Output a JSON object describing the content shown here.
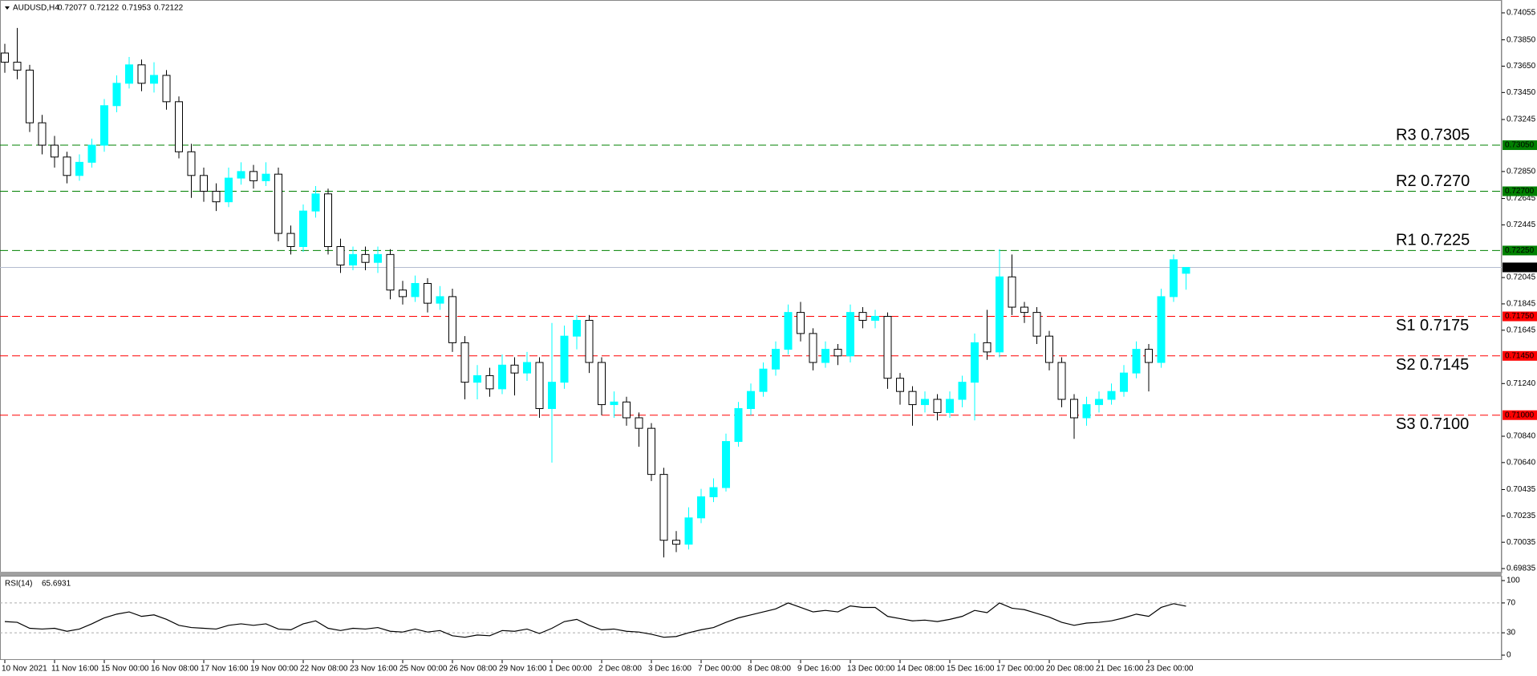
{
  "chart_data": [
    {
      "type": "candlestick",
      "symbol": "AUDUSD,H4",
      "categories": [
        "10 Nov 2021",
        null,
        null,
        null,
        "11 Nov 16:00",
        null,
        null,
        null,
        "15 Nov 00:00",
        null,
        null,
        null,
        "16 Nov 08:00",
        null,
        null,
        null,
        "17 Nov 16:00",
        null,
        null,
        null,
        "19 Nov 00:00",
        null,
        null,
        null,
        "22 Nov 08:00",
        null,
        null,
        null,
        "23 Nov 16:00",
        null,
        null,
        null,
        "25 Nov 00:00",
        null,
        null,
        null,
        "26 Nov 08:00",
        null,
        null,
        null,
        "29 Nov 16:00",
        null,
        null,
        null,
        "1 Dec 00:00",
        null,
        null,
        null,
        "2 Dec 08:00",
        null,
        null,
        null,
        "3 Dec 16:00",
        null,
        null,
        null,
        "7 Dec 00:00",
        null,
        null,
        null,
        "8 Dec 08:00",
        null,
        null,
        null,
        "9 Dec 16:00",
        null,
        null,
        null,
        "13 Dec 00:00",
        null,
        null,
        null,
        "14 Dec 08:00",
        null,
        null,
        null,
        "15 Dec 16:00",
        null,
        null,
        null,
        "17 Dec 00:00",
        null,
        null,
        null,
        "20 Dec 08:00",
        null,
        null,
        null,
        "21 Dec 16:00",
        null,
        null,
        null,
        "23 Dec 00:00",
        null,
        null,
        null
      ],
      "open": [
        0.7375,
        0.7368,
        0.7362,
        0.7322,
        0.7305,
        0.7296,
        0.7282,
        0.7292,
        0.7305,
        0.7335,
        0.7352,
        0.7366,
        0.7352,
        0.7358,
        0.7338,
        0.73,
        0.7282,
        0.727,
        0.7262,
        0.728,
        0.7285,
        0.7278,
        0.7283,
        0.7238,
        0.7228,
        0.7255,
        0.7268,
        0.7228,
        0.7214,
        0.7222,
        0.7216,
        0.7222,
        0.7195,
        0.719,
        0.72,
        0.7185,
        0.719,
        0.7155,
        0.7125,
        0.713,
        0.712,
        0.7138,
        0.7132,
        0.714,
        0.7105,
        0.7125,
        0.716,
        0.7172,
        0.714,
        0.7108,
        0.711,
        0.7098,
        0.709,
        0.7055,
        0.7005,
        0.7002,
        0.7022,
        0.7038,
        0.7045,
        0.708,
        0.7105,
        0.7118,
        0.7135,
        0.715,
        0.7178,
        0.7162,
        0.714,
        0.715,
        0.7145,
        0.7178,
        0.7172,
        0.7175,
        0.7128,
        0.7118,
        0.7108,
        0.7112,
        0.7102,
        0.7112,
        0.7125,
        0.7155,
        0.7148,
        0.7205,
        0.7182,
        0.7178,
        0.716,
        0.714,
        0.7112,
        0.7098,
        0.7108,
        0.7112,
        0.7118,
        0.7132,
        0.715,
        0.714,
        0.719,
        0.72077
      ],
      "high": [
        0.7382,
        0.7394,
        0.7366,
        0.7328,
        0.7312,
        0.73,
        0.7298,
        0.731,
        0.734,
        0.7358,
        0.7372,
        0.737,
        0.7368,
        0.7362,
        0.7342,
        0.7306,
        0.7288,
        0.7276,
        0.7288,
        0.7292,
        0.729,
        0.7292,
        0.7288,
        0.7244,
        0.726,
        0.7274,
        0.7272,
        0.7234,
        0.7228,
        0.7228,
        0.7228,
        0.7226,
        0.7202,
        0.7206,
        0.7204,
        0.7198,
        0.7196,
        0.716,
        0.7138,
        0.7136,
        0.7146,
        0.7144,
        0.7148,
        0.7144,
        0.717,
        0.7168,
        0.7176,
        0.7176,
        0.7144,
        0.7118,
        0.7114,
        0.7102,
        0.7094,
        0.706,
        0.7012,
        0.703,
        0.7044,
        0.7052,
        0.7086,
        0.711,
        0.7124,
        0.714,
        0.7156,
        0.7184,
        0.7186,
        0.7166,
        0.7156,
        0.7154,
        0.7184,
        0.7182,
        0.718,
        0.7178,
        0.7132,
        0.7122,
        0.7118,
        0.7116,
        0.7118,
        0.713,
        0.7162,
        0.718,
        0.7226,
        0.7222,
        0.7186,
        0.7182,
        0.7164,
        0.7144,
        0.7116,
        0.7114,
        0.7118,
        0.7124,
        0.7138,
        0.7156,
        0.7154,
        0.7196,
        0.7222,
        0.72122
      ],
      "low": [
        0.736,
        0.7355,
        0.7315,
        0.7298,
        0.7288,
        0.7276,
        0.7278,
        0.7288,
        0.73,
        0.733,
        0.7348,
        0.7346,
        0.7345,
        0.7332,
        0.7295,
        0.7265,
        0.7262,
        0.7255,
        0.7258,
        0.7275,
        0.7272,
        0.7274,
        0.7232,
        0.7222,
        0.7224,
        0.725,
        0.7222,
        0.7208,
        0.721,
        0.721,
        0.7208,
        0.7188,
        0.7184,
        0.7186,
        0.7178,
        0.718,
        0.7148,
        0.7112,
        0.7112,
        0.7114,
        0.7116,
        0.7115,
        0.7126,
        0.7098,
        0.7064,
        0.712,
        0.715,
        0.7132,
        0.71,
        0.7098,
        0.7092,
        0.7076,
        0.705,
        0.6992,
        0.6996,
        0.6998,
        0.7018,
        0.7034,
        0.7042,
        0.7076,
        0.71,
        0.7114,
        0.713,
        0.7146,
        0.7156,
        0.7134,
        0.7136,
        0.7138,
        0.714,
        0.7166,
        0.7166,
        0.712,
        0.7108,
        0.7092,
        0.7102,
        0.7096,
        0.7098,
        0.7106,
        0.7096,
        0.7142,
        0.7144,
        0.7176,
        0.717,
        0.7154,
        0.7134,
        0.7106,
        0.7082,
        0.7092,
        0.7102,
        0.7108,
        0.7114,
        0.7128,
        0.7118,
        0.7136,
        0.7186,
        0.71953
      ],
      "close": [
        0.7368,
        0.7362,
        0.7322,
        0.7305,
        0.7296,
        0.7282,
        0.7292,
        0.7305,
        0.7335,
        0.7352,
        0.7366,
        0.7352,
        0.7358,
        0.7338,
        0.73,
        0.7282,
        0.727,
        0.7262,
        0.728,
        0.7285,
        0.7278,
        0.7283,
        0.7238,
        0.7228,
        0.7255,
        0.7268,
        0.7228,
        0.7214,
        0.7222,
        0.7216,
        0.7222,
        0.7195,
        0.719,
        0.72,
        0.7185,
        0.719,
        0.7155,
        0.7125,
        0.713,
        0.712,
        0.7138,
        0.7132,
        0.714,
        0.7105,
        0.7125,
        0.716,
        0.7172,
        0.714,
        0.7108,
        0.711,
        0.7098,
        0.709,
        0.7055,
        0.7005,
        0.7002,
        0.7022,
        0.7038,
        0.7045,
        0.708,
        0.7105,
        0.7118,
        0.7135,
        0.715,
        0.7178,
        0.7162,
        0.714,
        0.715,
        0.7145,
        0.7178,
        0.7172,
        0.7175,
        0.7128,
        0.7118,
        0.7108,
        0.7112,
        0.7102,
        0.7112,
        0.7125,
        0.7155,
        0.7148,
        0.7205,
        0.7182,
        0.7178,
        0.716,
        0.714,
        0.7112,
        0.7098,
        0.7108,
        0.7112,
        0.7118,
        0.7132,
        0.715,
        0.714,
        0.719,
        0.7218,
        0.72122
      ],
      "up_color": "#00ffff",
      "down_color": "#ffffff",
      "outline_color": "#000000",
      "ylim": [
        0.69817,
        0.74128
      ],
      "yticks": [
        0.74055,
        {
          "value": 0.7385,
          "label": "0.73850"
        },
        {
          "value": 0.7365,
          "label": "0.73650"
        },
        {
          "value": 0.7345,
          "label": "0.73450"
        },
        0.73245,
        {
          "value": 0.7285,
          "label": "0.72850"
        },
        0.72645,
        0.72445,
        0.72045,
        0.71845,
        0.71645,
        {
          "value": 0.7124,
          "label": "0.71240"
        },
        {
          "value": 0.7084,
          "label": "0.70840"
        },
        {
          "value": 0.7064,
          "label": "0.70640"
        },
        0.70435,
        0.70235,
        0.70035,
        0.69835
      ],
      "levels": [
        {
          "name": "R3 0.7305",
          "value": 0.7305,
          "value_label": "0.73050",
          "color": "#008000"
        },
        {
          "name": "R2 0.7270",
          "value": 0.727,
          "value_label": "0.72700",
          "color": "#008000"
        },
        {
          "name": "R1 0.7225",
          "value": 0.7225,
          "value_label": "0.72250",
          "color": "#008000"
        },
        {
          "name": "S1 0.7175",
          "value": 0.7175,
          "value_label": "0.71750",
          "color": "#ff0000"
        },
        {
          "name": "S2 0.7145",
          "value": 0.7145,
          "value_label": "0.71450",
          "color": "#ff0000"
        },
        {
          "name": "S3 0.7100",
          "value": 0.71,
          "value_label": "0.71000",
          "color": "#ff0000"
        }
      ],
      "current": {
        "value": 0.72122,
        "label": "0.72122",
        "color": "#b4bccf"
      }
    },
    {
      "type": "line",
      "name": "RSI(14)",
      "color": "#000000",
      "values": [
        45,
        44,
        36,
        35,
        36,
        32,
        35,
        42,
        50,
        55,
        58,
        52,
        54,
        48,
        40,
        37,
        36,
        35,
        40,
        42,
        40,
        42,
        35,
        34,
        42,
        46,
        36,
        33,
        36,
        35,
        37,
        32,
        31,
        35,
        31,
        33,
        26,
        24,
        27,
        26,
        33,
        32,
        35,
        29,
        36,
        45,
        48,
        40,
        34,
        35,
        32,
        31,
        28,
        24,
        25,
        30,
        34,
        37,
        44,
        50,
        54,
        58,
        62,
        70,
        64,
        58,
        60,
        58,
        66,
        64,
        64,
        52,
        49,
        46,
        47,
        45,
        48,
        52,
        60,
        57,
        70,
        63,
        61,
        56,
        51,
        44,
        40,
        43,
        44,
        46,
        50,
        55,
        52,
        64,
        69,
        65.6931
      ],
      "ylim": [
        0,
        100
      ],
      "yticks": [
        0,
        30,
        70,
        100
      ]
    }
  ]
}
